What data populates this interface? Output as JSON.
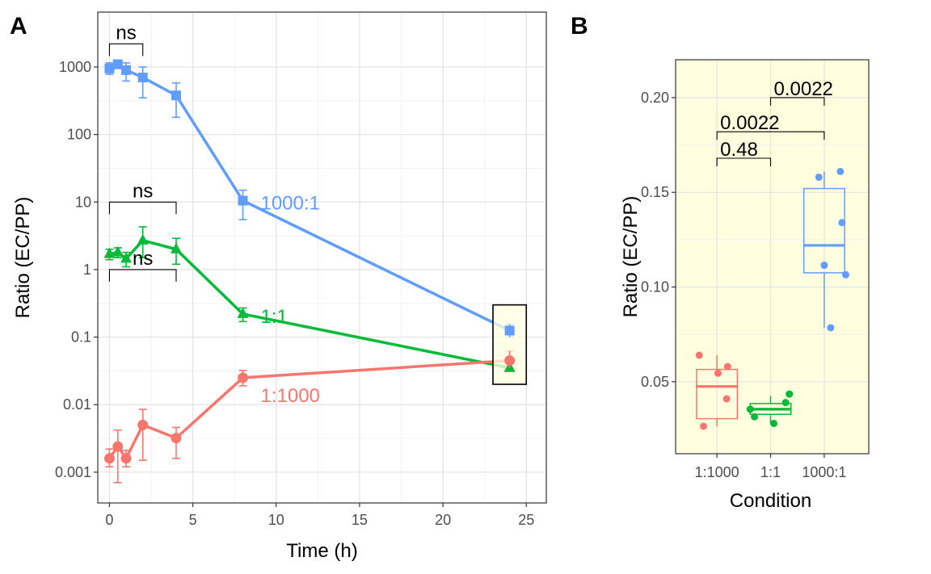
{
  "panels": {
    "a_label": "A",
    "b_label": "B"
  },
  "colors": {
    "blue": "#619cff",
    "green": "#00ba38",
    "red": "#f8766d",
    "grid": "#ebebeb",
    "panel_b_bg": "#ffffe0"
  },
  "chart_data": [
    {
      "type": "line",
      "xlabel": "Time (h)",
      "ylabel": "Ratio (EC/PP)",
      "yscale": "log",
      "xlim": [
        -0.7,
        26.2
      ],
      "ylim": [
        0.00035,
        6500
      ],
      "xticks": [
        0,
        5,
        10,
        15,
        20,
        25
      ],
      "xtick_labels": [
        "0",
        "5",
        "10",
        "15",
        "20",
        "25"
      ],
      "yticks": [
        0.001,
        0.01,
        0.1,
        1,
        10,
        100,
        1000
      ],
      "ytick_labels": [
        "0.001",
        "0.01",
        "0.1",
        "1",
        "10",
        "100",
        "1000"
      ],
      "grid": true,
      "series": [
        {
          "name": "1000:1",
          "color": "#619cff",
          "marker": "square",
          "x": [
            0,
            0.5,
            1,
            2,
            4,
            8,
            24
          ],
          "y": [
            950,
            1100,
            900,
            700,
            380,
            10.5,
            0.125
          ],
          "err_low": [
            780,
            950,
            620,
            350,
            180,
            5.5,
            0.1
          ],
          "err_high": [
            1150,
            1250,
            1150,
            1000,
            580,
            15,
            0.155
          ]
        },
        {
          "name": "1:1",
          "color": "#00ba38",
          "marker": "triangle",
          "x": [
            0,
            0.5,
            1,
            2,
            4,
            8,
            24
          ],
          "y": [
            1.7,
            1.8,
            1.45,
            2.7,
            2.0,
            0.22,
            0.035
          ],
          "err_low": [
            1.4,
            1.5,
            1.1,
            1.5,
            1.2,
            0.17,
            0.031
          ],
          "err_high": [
            2.0,
            2.1,
            1.8,
            4.3,
            2.9,
            0.27,
            0.04
          ]
        },
        {
          "name": "1:1000",
          "color": "#f8766d",
          "marker": "circle",
          "x": [
            0,
            0.5,
            1,
            2,
            4,
            8,
            24
          ],
          "y": [
            0.0016,
            0.0024,
            0.0016,
            0.005,
            0.0032,
            0.025,
            0.045
          ],
          "err_low": [
            0.0012,
            0.0007,
            0.0012,
            0.0015,
            0.0016,
            0.019,
            0.035
          ],
          "err_high": [
            0.0022,
            0.0042,
            0.0021,
            0.0085,
            0.0046,
            0.032,
            0.062
          ]
        }
      ],
      "annotations": [
        {
          "text": "ns",
          "x1": 0,
          "x2": 2,
          "y": 2200
        },
        {
          "text": "ns",
          "x1": 0,
          "x2": 4,
          "y": 10
        },
        {
          "text": "ns",
          "x1": 0,
          "x2": 4,
          "y": 1.0
        }
      ],
      "highlight_box": {
        "x1": 23,
        "x2": 25,
        "y1": 0.02,
        "y2": 0.3
      }
    },
    {
      "type": "box",
      "xlabel": "Condition",
      "ylabel": "Ratio (EC/PP)",
      "categories": [
        "1:1000",
        "1:1",
        "1000:1"
      ],
      "ylim": [
        0.012,
        0.22
      ],
      "yticks": [
        0.05,
        0.1,
        0.15,
        0.2
      ],
      "ytick_labels": [
        "0.05",
        "0.10",
        "0.15",
        "0.20"
      ],
      "grid": true,
      "boxes": [
        {
          "name": "1:1000",
          "color": "#f8766d",
          "q1": 0.0305,
          "median": 0.0475,
          "q3": 0.0565,
          "whisker_low": 0.0265,
          "whisker_high": 0.064,
          "points": [
            [
              -0.25,
              0.0265
            ],
            [
              -0.33,
              0.064
            ],
            [
              0.02,
              0.0545
            ],
            [
              0.2,
              0.058
            ],
            [
              0.18,
              0.041
            ]
          ]
        },
        {
          "name": "1:1",
          "color": "#00ba38",
          "q1": 0.0328,
          "median": 0.0355,
          "q3": 0.0385,
          "whisker_low": 0.028,
          "whisker_high": 0.0425,
          "points": [
            [
              -0.38,
              0.0355
            ],
            [
              -0.3,
              0.0315
            ],
            [
              0.06,
              0.028
            ],
            [
              0.28,
              0.039
            ],
            [
              0.35,
              0.0435
            ]
          ]
        },
        {
          "name": "1000:1",
          "color": "#619cff",
          "q1": 0.1075,
          "median": 0.122,
          "q3": 0.152,
          "whisker_low": 0.0785,
          "whisker_high": 0.161,
          "points": [
            [
              -0.1,
              0.158
            ],
            [
              0.12,
              0.0785
            ],
            [
              0.3,
              0.161
            ],
            [
              0.33,
              0.134
            ],
            [
              0.0,
              0.1115
            ],
            [
              0.4,
              0.1065
            ]
          ]
        }
      ],
      "comparisons": [
        {
          "text": "0.48",
          "from": 0,
          "to": 1,
          "y": 0.168
        },
        {
          "text": "0.0022",
          "from": 0,
          "to": 2,
          "y": 0.182
        },
        {
          "text": "0.0022",
          "from": 1,
          "to": 2,
          "y": 0.2
        }
      ]
    }
  ]
}
